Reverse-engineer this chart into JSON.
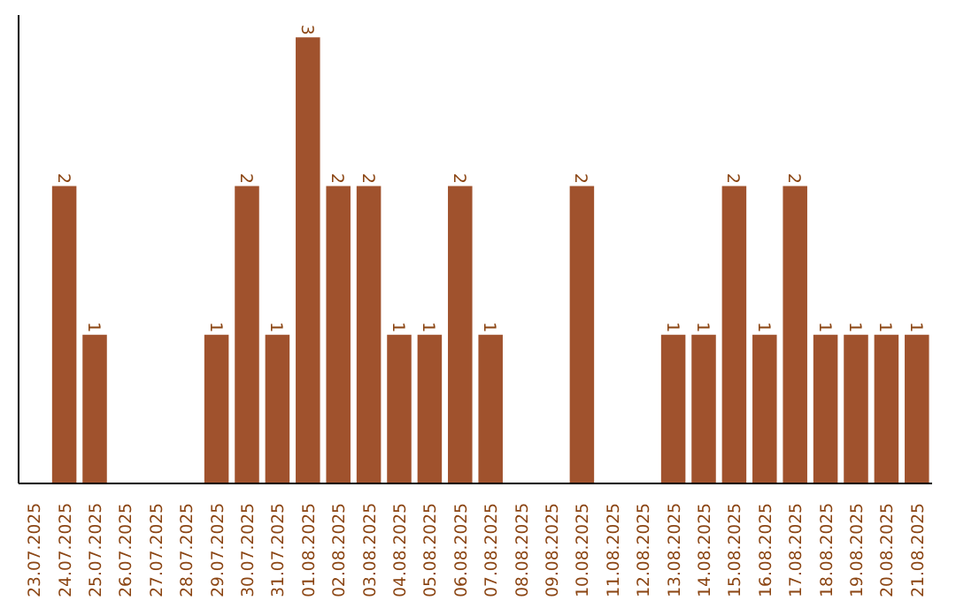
{
  "chart_data": {
    "type": "bar",
    "categories": [
      "23.07.2025",
      "24.07.2025",
      "25.07.2025",
      "26.07.2025",
      "27.07.2025",
      "28.07.2025",
      "29.07.2025",
      "30.07.2025",
      "31.07.2025",
      "01.08.2025",
      "02.08.2025",
      "03.08.2025",
      "04.08.2025",
      "05.08.2025",
      "06.08.2025",
      "07.08.2025",
      "08.08.2025",
      "09.08.2025",
      "10.08.2025",
      "11.08.2025",
      "12.08.2025",
      "13.08.2025",
      "14.08.2025",
      "15.08.2025",
      "16.08.2025",
      "17.08.2025",
      "18.08.2025",
      "19.08.2025",
      "20.08.2025",
      "21.08.2025"
    ],
    "values": [
      0,
      2,
      1,
      0,
      0,
      0,
      1,
      2,
      1,
      3,
      2,
      2,
      1,
      1,
      2,
      1,
      0,
      0,
      2,
      0,
      0,
      1,
      1,
      2,
      1,
      2,
      1,
      1,
      1,
      1
    ],
    "value_labels": [
      null,
      "2",
      "1",
      null,
      null,
      null,
      "1",
      "2",
      "1",
      "3",
      "2",
      "2",
      "1",
      "1",
      "2",
      "1",
      null,
      null,
      "2",
      null,
      null,
      "1",
      "1",
      "2",
      "1",
      "2",
      "1",
      "1",
      "1",
      "1"
    ],
    "color": "#a0522d",
    "grid": false,
    "tick_labels": "x"
  }
}
